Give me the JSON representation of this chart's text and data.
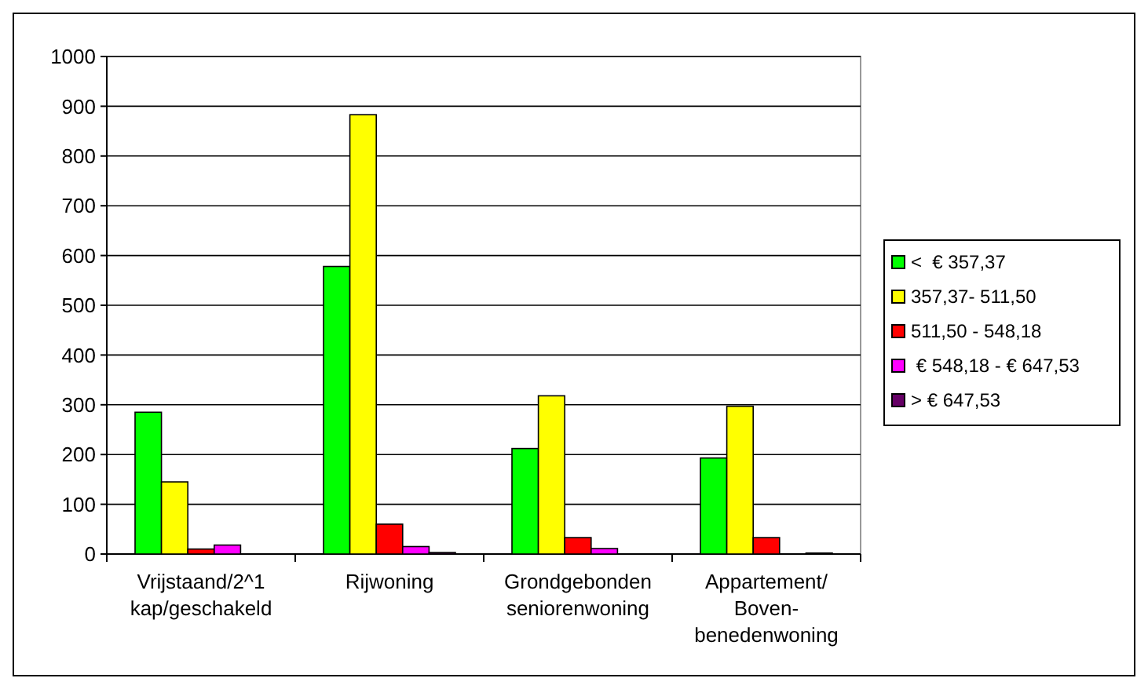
{
  "chart_data": {
    "type": "bar",
    "categories": [
      "Vrijstaand/2^1 kap/geschakeld",
      "Rijwoning",
      "Grondgebonden seniorenwoning",
      "Appartement/Boven-benedenwoning"
    ],
    "series": [
      {
        "name": "<  € 357,37",
        "color": "#00ff00",
        "values": [
          285,
          578,
          212,
          193
        ]
      },
      {
        "name": "357,37- 511,50",
        "color": "#ffff00",
        "values": [
          145,
          883,
          318,
          297
        ]
      },
      {
        "name": "511,50 - 548,18",
        "color": "#ff0000",
        "values": [
          10,
          60,
          33,
          33
        ]
      },
      {
        "name": " € 548,18 - € 647,53",
        "color": "#ff00ff",
        "values": [
          18,
          15,
          11,
          0
        ]
      },
      {
        "name": "> € 647,53",
        "color": "#660066",
        "values": [
          0,
          3,
          0,
          2
        ]
      }
    ],
    "ylim": [
      0,
      1000
    ],
    "yticks": [
      0,
      100,
      200,
      300,
      400,
      500,
      600,
      700,
      800,
      900,
      1000
    ],
    "grid": "y",
    "legend": "right"
  }
}
